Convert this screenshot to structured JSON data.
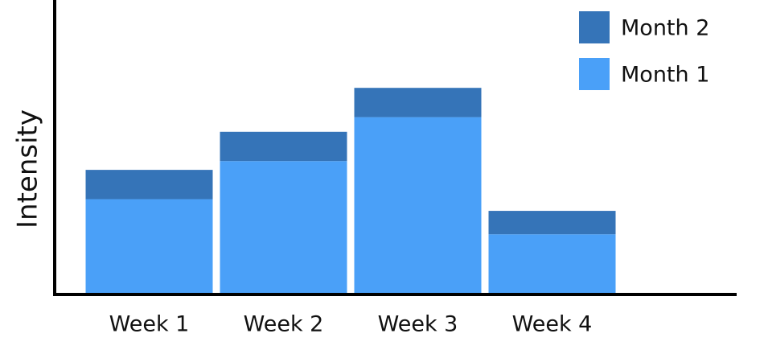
{
  "chart_data": {
    "type": "stacked_bar",
    "y_label": "Intensity",
    "categories": [
      "Week 1",
      "Week 2",
      "Week 3",
      "Week 4"
    ],
    "series": [
      {
        "name": "Month 1",
        "color": "#4aa0f8",
        "values": [
          32,
          45,
          60,
          20
        ]
      },
      {
        "name": "Month 2",
        "color": "#3574b8",
        "values": [
          10,
          10,
          10,
          8
        ]
      }
    ],
    "ylim": [
      0,
      100
    ],
    "legend": "top-right"
  }
}
